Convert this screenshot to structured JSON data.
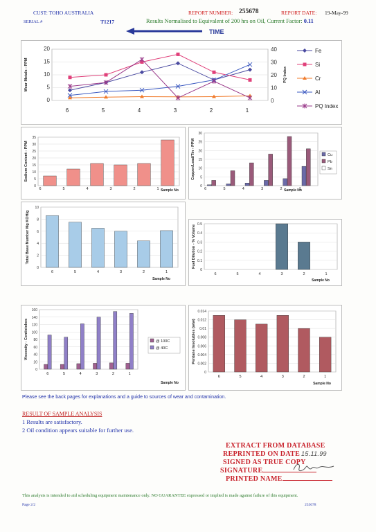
{
  "header": {
    "cust": "CUST: TOHO AUSTRALIA",
    "serial_label": "SERIAL #",
    "serial_value": "T1217",
    "report_number_label": "REPORT NUMBER:",
    "report_number": "255678",
    "report_date_label": "REPORT DATE:",
    "report_date": "19-May-99",
    "normalised": "Results Normalised to Equivalent of 200 hrs on Oil, Current Factor:",
    "factor": "0.11",
    "time_label": "TIME"
  },
  "colors": {
    "fe": "#4a4aa0",
    "si": "#e0407a",
    "cr": "#f07a2a",
    "al": "#3a58c0",
    "pq": "#9a3a8a",
    "sodium": "#f0908a",
    "cu": "#6a6aa8",
    "pb": "#9a5a7a",
    "tbn": "#a8cce8",
    "fuel": "#5a7a90",
    "visc100": "#a06090",
    "visc40": "#9080c8",
    "pentane": "#b05a60"
  },
  "chart_data": [
    {
      "type": "line",
      "categories": [
        "6",
        "5",
        "4",
        "3",
        "2",
        "1"
      ],
      "ylabel": "Wear Metals - PPM",
      "y2label": "PQ Index",
      "ylim": [
        0,
        20
      ],
      "y2lim": [
        0,
        40
      ],
      "yticks": [
        "20",
        "15",
        "10",
        "5",
        "0"
      ],
      "y2ticks": [
        "40",
        "30",
        "20",
        "10",
        "0"
      ],
      "series": [
        {
          "name": "Fe",
          "values": [
            4,
            7,
            11,
            14.5,
            8,
            12
          ]
        },
        {
          "name": "Si",
          "values": [
            9,
            10,
            15,
            18,
            11,
            8
          ]
        },
        {
          "name": "Cr",
          "values": [
            1,
            1.3,
            1.5,
            1.4,
            1.5,
            1.8
          ]
        },
        {
          "name": "Al",
          "values": [
            2,
            3.5,
            4,
            5.5,
            8,
            14
          ]
        },
        {
          "name": "PQ Index",
          "values": [
            5.5,
            7,
            16,
            1,
            7.5,
            1
          ]
        }
      ],
      "legend": "right"
    },
    {
      "type": "bar",
      "categories": [
        "6",
        "5",
        "4",
        "3",
        "2",
        "1"
      ],
      "values": [
        7,
        12,
        16,
        15,
        16,
        33
      ],
      "ylabel": "Sodium Content - PPM",
      "xlabel": "Sample No",
      "ylim": [
        0,
        35
      ],
      "yticks": [
        "35",
        "30",
        "25",
        "20",
        "15",
        "10",
        "5",
        "0"
      ]
    },
    {
      "type": "bar",
      "categories": [
        "6",
        "5",
        "4",
        "3",
        "2",
        "1"
      ],
      "ylabel": "Copper/Lead/Tin - PPM",
      "xlabel": "Sample No",
      "ylim": [
        0,
        30
      ],
      "yticks": [
        "30",
        "25",
        "20",
        "15",
        "10",
        "5",
        "0"
      ],
      "series": [
        {
          "name": "Cu",
          "values": [
            0.5,
            1,
            1.5,
            3,
            4,
            11
          ]
        },
        {
          "name": "Pb",
          "values": [
            3,
            8.5,
            13,
            18,
            28,
            21
          ]
        },
        {
          "name": "Sn",
          "values": [
            0,
            0,
            0,
            0,
            0,
            0
          ]
        }
      ],
      "legend": "right"
    },
    {
      "type": "bar",
      "categories": [
        "6",
        "5",
        "4",
        "3",
        "2",
        "1"
      ],
      "values": [
        8.6,
        7.5,
        6.5,
        6,
        4.4,
        6.1
      ],
      "ylabel": "Total Base Number Mg KOH/g",
      "xlabel": "Sample No",
      "ylim": [
        0,
        10
      ],
      "yticks": [
        "10",
        "8",
        "6",
        "4",
        "2",
        "0"
      ]
    },
    {
      "type": "bar",
      "categories": [
        "6",
        "5",
        "4",
        "3",
        "2",
        "1"
      ],
      "values": [
        0,
        0,
        0,
        0.5,
        0.3,
        0
      ],
      "ylabel": "Fuel Dilution - % Volume",
      "xlabel": "Sample No",
      "ylim": [
        0,
        0.5
      ],
      "yticks": [
        "0.5",
        "0.4",
        "0.3",
        "0.2",
        "0.1",
        "0"
      ]
    },
    {
      "type": "bar",
      "categories": [
        "6",
        "5",
        "4",
        "3",
        "2",
        "1"
      ],
      "ylabel": "Viscosity - Centistokes",
      "xlabel": "Sample No",
      "ylim": [
        0,
        160
      ],
      "yticks": [
        "160",
        "140",
        "120",
        "100",
        "80",
        "60",
        "40",
        "20",
        "0"
      ],
      "series": [
        {
          "name": "@ 100C",
          "values": [
            13,
            13,
            15,
            16,
            17,
            16
          ]
        },
        {
          "name": "@ 40C",
          "values": [
            92,
            86,
            122,
            140,
            155,
            150
          ]
        }
      ],
      "legend": "right"
    },
    {
      "type": "bar",
      "categories": [
        "6",
        "5",
        "4",
        "3",
        "2",
        "1"
      ],
      "values": [
        0.013,
        0.012,
        0.011,
        0.013,
        0.01,
        0.008
      ],
      "ylabel": "Pentane Insolubles (w/w)",
      "xlabel": "Sample No",
      "ylim": [
        0,
        0.014
      ],
      "yticks": [
        "0.014",
        "0.012",
        "0.01",
        "0.008",
        "0.006",
        "0.004",
        "0.002",
        "0"
      ]
    }
  ],
  "note": "Please see the back pages for explanations and a guide to sources of wear and contamination.",
  "result": {
    "title": "RESULT OF SAMPLE ANALYSIS",
    "lines": [
      "1 Results are satisfactory.",
      "2 Oil condition appears suitable for further use."
    ]
  },
  "stamp": {
    "line1": "EXTRACT FROM DATABASE",
    "line2": "REPRINTED ON DATE",
    "date_written": "15.11.99",
    "line3": "SIGNED AS TRUE COPY",
    "line4": "SIGNATURE",
    "signature": "C.R.hv",
    "line5": "PRINTED NAME"
  },
  "disclaimer": "This analysis is intended to aid scheduling equipment maintenance only. NO GUARANTEE expressed or implied is made against failure of this equipment.",
  "footer": {
    "page": "Page 2/2",
    "ref": "255678"
  }
}
